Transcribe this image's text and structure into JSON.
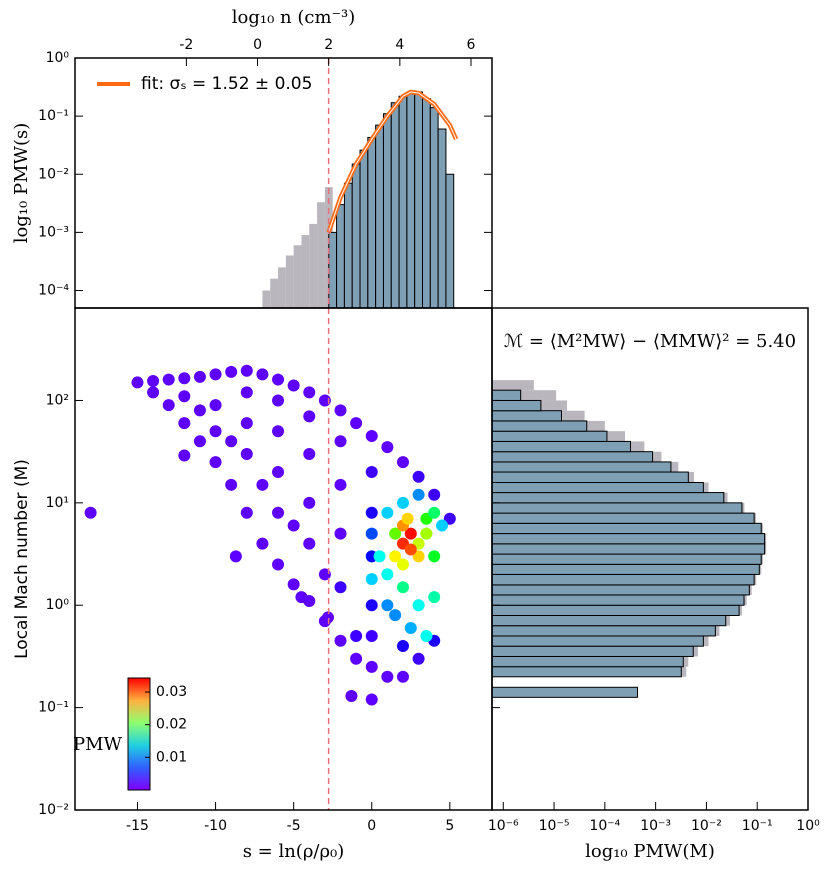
{
  "chart_data": [
    {
      "type": "histogram",
      "x2label": "log₁₀ n (cm⁻³)",
      "ylabel": "log₁₀ PMW(s)",
      "xlim": [
        -19,
        7.7
      ],
      "x2lim": [
        -5.13,
        6.59
      ],
      "x2ticks": [
        -2,
        0,
        2,
        4,
        6
      ],
      "ylim": [
        5e-05,
        1
      ],
      "log_y": true,
      "yticks": [
        {
          "value": 0.0001,
          "label": "10⁻⁴"
        },
        {
          "value": 0.001,
          "label": "10⁻³"
        },
        {
          "value": 0.01,
          "label": "10⁻²"
        },
        {
          "value": 0.1,
          "label": "10⁻¹"
        },
        {
          "value": 1,
          "label": "10⁰"
        }
      ],
      "vline": -2.76,
      "legend": "upper left",
      "series": [
        {
          "color": "#b9b6bd",
          "bins": [
            -7,
            -6.5,
            -6,
            -5.5,
            -5,
            -4.5,
            -4,
            -3.5,
            -3,
            -2.5
          ],
          "values": [
            0.0001,
            0.00016,
            0.00025,
            0.0004,
            0.0006,
            0.0009,
            0.0014,
            0.0033,
            0.006
          ]
        },
        {
          "color": "#7f9fb5",
          "bins": [
            -2.75,
            -2.25,
            -1.75,
            -1.25,
            -0.75,
            -0.25,
            0.25,
            0.75,
            1.25,
            1.75,
            2.25,
            2.75,
            3.25,
            3.75,
            4.25,
            4.75,
            5.25
          ],
          "values": [
            0.001,
            0.003,
            0.007,
            0.015,
            0.026,
            0.043,
            0.07,
            0.11,
            0.17,
            0.22,
            0.26,
            0.26,
            0.2,
            0.14,
            0.06,
            0.01
          ]
        },
        {
          "type": "line",
          "name": "fit: σₛ = 1.52 ± 0.05",
          "color": "#ff6a13",
          "x": [
            -2.76,
            -2,
            -1,
            0,
            1,
            2,
            2.5,
            3,
            4,
            5,
            5.4
          ],
          "values": [
            0.001,
            0.004,
            0.015,
            0.04,
            0.1,
            0.22,
            0.26,
            0.25,
            0.16,
            0.07,
            0.04
          ]
        }
      ]
    },
    {
      "type": "scatter",
      "xlabel": "s = ln(ρ/ρ₀)",
      "ylabel": "Local Mach number (M)",
      "xlim": [
        -19,
        7.7
      ],
      "xticks": [
        -15,
        -10,
        -5,
        0,
        5
      ],
      "ylim": [
        0.01,
        800
      ],
      "log_y": true,
      "yticks": [
        {
          "value": 0.01,
          "label": "10⁻²"
        },
        {
          "value": 0.1,
          "label": "10⁻¹"
        },
        {
          "value": 1,
          "label": "10⁰"
        },
        {
          "value": 10,
          "label": "10¹"
        },
        {
          "value": 100,
          "label": "10²"
        }
      ],
      "vline": -2.76,
      "x": [
        -15,
        -14,
        -13,
        -12,
        -11,
        -10,
        -9,
        -8,
        -7,
        -6,
        -5,
        -4,
        -3,
        -2,
        -1,
        0,
        1,
        2,
        3,
        4,
        5,
        -14,
        -13,
        -12,
        -11,
        -10,
        -9,
        -8,
        -7,
        -6,
        -5,
        -4,
        -3,
        -2,
        -1,
        0,
        1,
        2,
        3,
        4,
        -12,
        -10,
        -10,
        -8,
        -8,
        -8,
        -6,
        -6,
        -6,
        -6,
        -4,
        -4,
        -4,
        -4,
        -2,
        -2,
        -2,
        -2,
        0,
        0,
        0,
        0,
        0,
        2,
        -1,
        -3,
        -5,
        -7,
        -9,
        -11,
        -18,
        -12,
        -8.7,
        -4.5,
        -2.8,
        -1.3,
        0,
        0,
        1,
        1,
        1,
        2,
        2,
        3,
        3,
        4,
        4,
        4.5,
        0.5,
        3.5,
        1.5,
        3,
        4,
        0,
        2.5,
        3.5,
        1.5,
        2,
        2.5,
        2,
        3,
        1.5,
        2.5,
        2,
        3.5,
        2.3
      ],
      "y": [
        150,
        155,
        160,
        165,
        170,
        180,
        190,
        195,
        180,
        160,
        140,
        120,
        100,
        80,
        60,
        45,
        35,
        25,
        18,
        12,
        7,
        120,
        90,
        60,
        40,
        25,
        15,
        8,
        4,
        2.5,
        1.6,
        1.1,
        0.7,
        0.45,
        0.3,
        0.25,
        0.2,
        0.2,
        0.3,
        0.45,
        110,
        90,
        50,
        120,
        60,
        30,
        100,
        50,
        20,
        8,
        70,
        30,
        10,
        4,
        40,
        15,
        5,
        1.5,
        20,
        8,
        3,
        1,
        0.5,
        0.4,
        0.5,
        2,
        6,
        15,
        40,
        80,
        8,
        29,
        3,
        1.2,
        0.76,
        0.13,
        0.12,
        5,
        8,
        2,
        1,
        10,
        1.5,
        1,
        12,
        3,
        1.2,
        6,
        3,
        7,
        5,
        4,
        8,
        1.8,
        0.6,
        0.5,
        0.8,
        4,
        5,
        6,
        3,
        3,
        3.5,
        2.5,
        5,
        7
      ],
      "c": [
        0.001,
        0.001,
        0.001,
        0.001,
        0.001,
        0.001,
        0.001,
        0.001,
        0.001,
        0.001,
        0.001,
        0.001,
        0.001,
        0.001,
        0.001,
        0.001,
        0.001,
        0.001,
        0.002,
        0.002,
        0.002,
        0.001,
        0.001,
        0.001,
        0.001,
        0.001,
        0.001,
        0.001,
        0.001,
        0.001,
        0.001,
        0.001,
        0.001,
        0.001,
        0.001,
        0.001,
        0.001,
        0.001,
        0.002,
        0.003,
        0.001,
        0.001,
        0.001,
        0.001,
        0.001,
        0.001,
        0.001,
        0.001,
        0.001,
        0.001,
        0.001,
        0.001,
        0.001,
        0.001,
        0.001,
        0.001,
        0.001,
        0.002,
        0.002,
        0.003,
        0.004,
        0.003,
        0.002,
        0.003,
        0.002,
        0.001,
        0.001,
        0.001,
        0.001,
        0.001,
        0.001,
        0.001,
        0.001,
        0.001,
        0.001,
        0.001,
        0.001,
        0.006,
        0.01,
        0.012,
        0.008,
        0.01,
        0.015,
        0.012,
        0.008,
        0.018,
        0.014,
        0.01,
        0.012,
        0.02,
        0.022,
        0.025,
        0.016,
        0.01,
        0.009,
        0.012,
        0.008,
        0.033,
        0.034,
        0.03,
        0.028,
        0.027,
        0.032,
        0.026,
        0.024,
        0.028
      ],
      "colorbar": {
        "label": "PMW",
        "clim": [
          0,
          0.0343
        ],
        "ticks": [
          0.01,
          0.02,
          0.03
        ]
      }
    },
    {
      "type": "barh_histogram",
      "xlabel": "log₁₀ PMW(M)",
      "annotation": "ℳ = ⟨M²MW⟩ − ⟨MMW⟩² = 5.40",
      "xlim": [
        6e-07,
        1
      ],
      "log_x": true,
      "xticks": [
        {
          "value": 1e-06,
          "label": "10⁻⁶"
        },
        {
          "value": 1e-05,
          "label": "10⁻⁵"
        },
        {
          "value": 0.0001,
          "label": "10⁻⁴"
        },
        {
          "value": 0.001,
          "label": "10⁻³"
        },
        {
          "value": 0.01,
          "label": "10⁻²"
        },
        {
          "value": 0.1,
          "label": "10⁻¹"
        },
        {
          "value": 1,
          "label": "10⁰"
        }
      ],
      "ylim": [
        0.01,
        800
      ],
      "log_y": true,
      "series": [
        {
          "color": "#b9b6bd",
          "bins": [
            0.2,
            0.251,
            0.316,
            0.398,
            0.501,
            0.631,
            0.794,
            1,
            1.26,
            1.58,
            2,
            2.51,
            3.16,
            3.98,
            5.01,
            6.31,
            7.94,
            10,
            12.6,
            15.8,
            20,
            25.1,
            31.6,
            39.8,
            50.1,
            63.1,
            79.4,
            100,
            126,
            158
          ],
          "values": [
            0.004,
            0.0044,
            0.0068,
            0.011,
            0.018,
            0.029,
            0.05,
            0.062,
            0.078,
            0.096,
            0.12,
            0.13,
            0.15,
            0.15,
            0.13,
            0.095,
            0.056,
            0.026,
            0.011,
            0.0057,
            0.0028,
            0.0013,
            0.0006,
            0.00025,
            0.0001,
            4e-05,
            1.8e-05,
            1.1e-05,
            4e-06
          ]
        },
        {
          "color": "#7f9fb5",
          "bins": [
            0.126,
            0.158,
            0.2,
            0.251,
            0.316,
            0.398,
            0.501,
            0.631,
            0.794,
            1,
            1.26,
            1.58,
            2,
            2.51,
            3.16,
            3.98,
            5.01,
            6.31,
            7.94,
            10,
            12.6,
            15.8,
            20,
            25.1,
            31.6,
            39.8,
            50.1,
            63.1,
            79.4,
            100,
            126
          ],
          "values": [
            0.00044,
            null,
            0.0032,
            0.0035,
            0.0055,
            0.0087,
            0.015,
            0.024,
            0.044,
            0.055,
            0.07,
            0.087,
            0.11,
            0.12,
            0.14,
            0.14,
            0.12,
            0.087,
            0.05,
            0.022,
            0.0087,
            0.0044,
            0.002,
            0.00087,
            0.00032,
            0.00011,
            4.4e-05,
            1.4e-05,
            5.5e-06,
            2.2e-06
          ]
        }
      ]
    }
  ]
}
